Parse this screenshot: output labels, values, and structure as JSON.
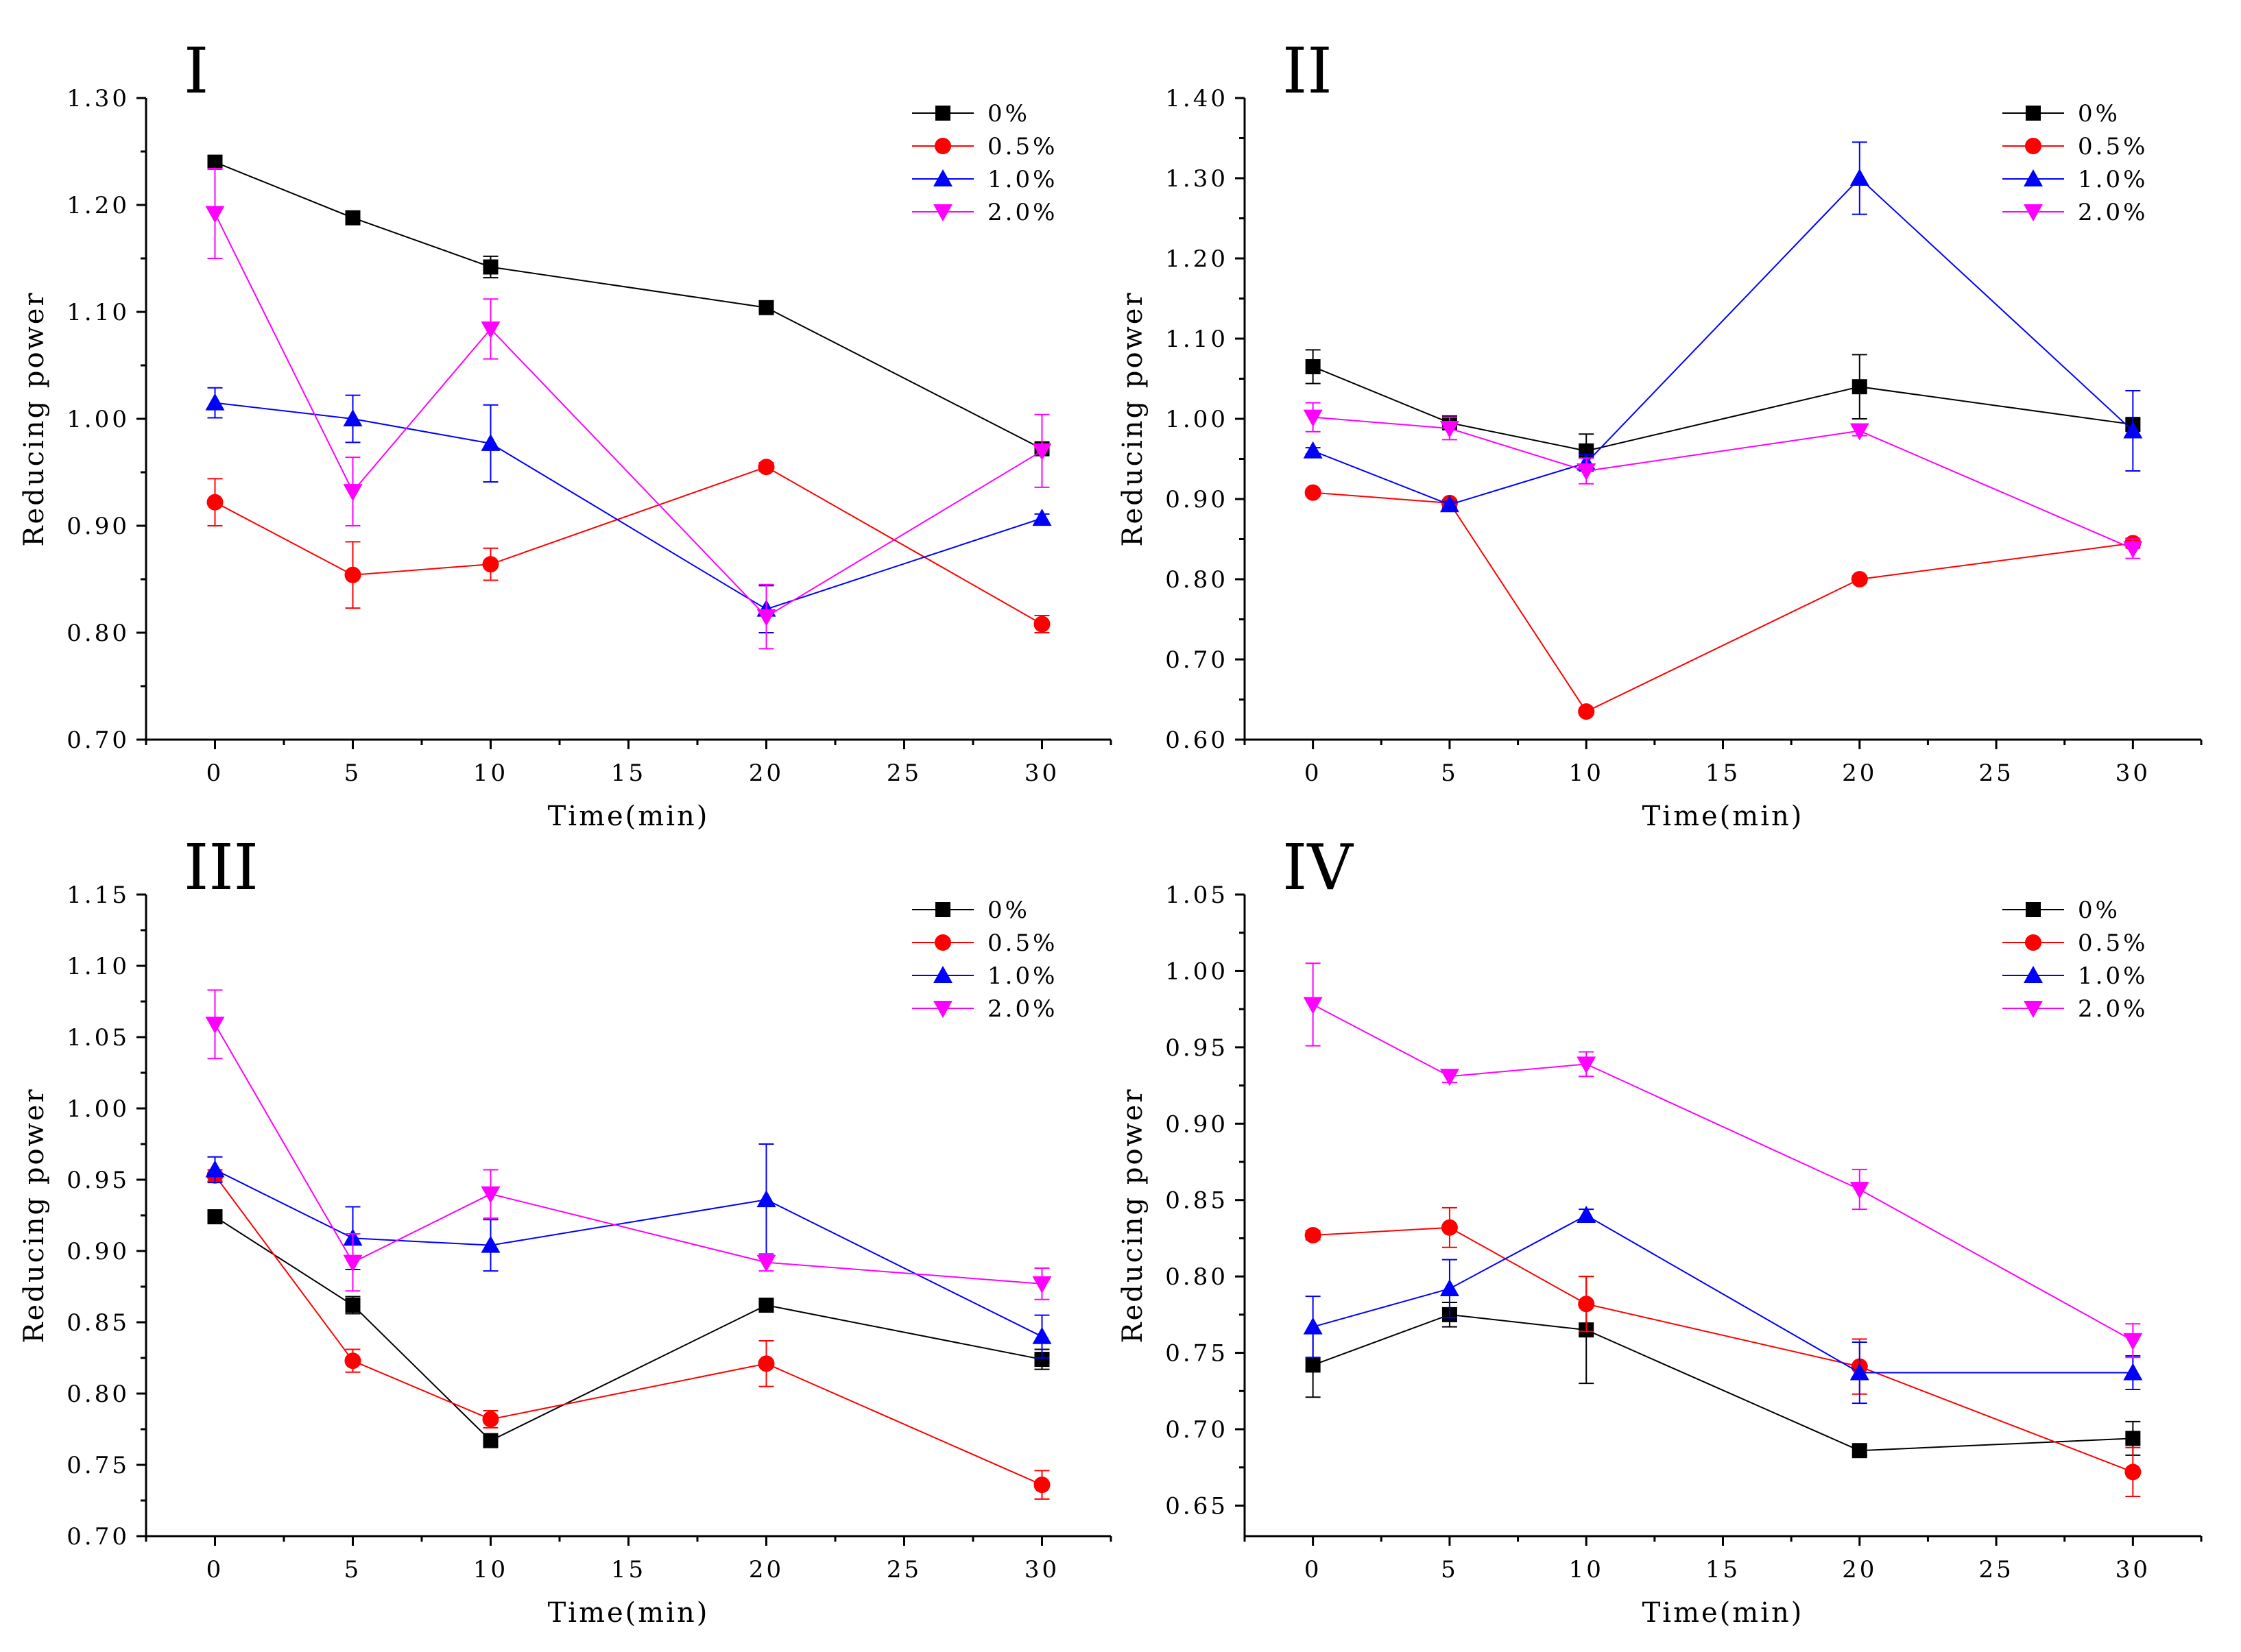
{
  "colors": {
    "0%": "#000000",
    "0.5%": "#ff0000",
    "1.0%": "#0000ff",
    "2.0%": "#ff00ff"
  },
  "chart_data": [
    {
      "type": "line",
      "panel_label": "I",
      "xlabel": "Time(min)",
      "ylabel": "Reducing power",
      "xlim": [
        -2.5,
        32.5
      ],
      "xticks": [
        0,
        5,
        10,
        15,
        20,
        25,
        30
      ],
      "xtick_labels": [
        "0",
        "5",
        "10",
        "15",
        "20",
        "25",
        "30"
      ],
      "ylim": [
        0.7,
        1.3
      ],
      "yticks": [
        0.7,
        0.8,
        0.9,
        1.0,
        1.1,
        1.2,
        1.3
      ],
      "ytick_labels": [
        "0.70",
        "0.80",
        "0.90",
        "1.00",
        "1.10",
        "1.20",
        "1.30"
      ],
      "x": [
        0,
        5,
        10,
        20,
        30
      ],
      "legend_position": "top-right",
      "series": [
        {
          "name": "0%",
          "marker": "square",
          "values": [
            1.24,
            1.188,
            1.142,
            1.104,
            0.972
          ],
          "errors": [
            0.004,
            0.004,
            0.01,
            0.004,
            0.004
          ]
        },
        {
          "name": "0.5%",
          "marker": "circle",
          "values": [
            0.922,
            0.854,
            0.864,
            0.955,
            0.808
          ],
          "errors": [
            0.022,
            0.031,
            0.015,
            0.004,
            0.008
          ]
        },
        {
          "name": "1.0%",
          "marker": "triangle-up",
          "values": [
            1.015,
            1.0,
            0.977,
            0.822,
            0.907
          ],
          "errors": [
            0.014,
            0.022,
            0.036,
            0.022,
            0.004
          ]
        },
        {
          "name": "2.0%",
          "marker": "triangle-down",
          "values": [
            1.192,
            0.932,
            1.084,
            0.815,
            0.97
          ],
          "errors": [
            0.042,
            0.032,
            0.028,
            0.03,
            0.034
          ]
        }
      ]
    },
    {
      "type": "line",
      "panel_label": "II",
      "xlabel": "Time(min)",
      "ylabel": "Reducing power",
      "xlim": [
        -2.5,
        32.5
      ],
      "xticks": [
        0,
        5,
        10,
        15,
        20,
        25,
        30
      ],
      "xtick_labels": [
        "0",
        "5",
        "10",
        "15",
        "20",
        "25",
        "30"
      ],
      "ylim": [
        0.6,
        1.4
      ],
      "yticks": [
        0.6,
        0.7,
        0.8,
        0.9,
        1.0,
        1.1,
        1.2,
        1.3,
        1.4
      ],
      "ytick_labels": [
        "0.60",
        "0.70",
        "0.80",
        "0.90",
        "1.00",
        "1.10",
        "1.20",
        "1.30",
        "1.40"
      ],
      "x": [
        0,
        5,
        10,
        20,
        30
      ],
      "legend_position": "top-right",
      "series": [
        {
          "name": "0%",
          "marker": "square",
          "values": [
            1.065,
            0.995,
            0.96,
            1.04,
            0.993
          ],
          "errors": [
            0.021,
            0.006,
            0.021,
            0.04,
            0.006
          ]
        },
        {
          "name": "0.5%",
          "marker": "circle",
          "values": [
            0.908,
            0.895,
            0.635,
            0.8,
            0.845
          ],
          "errors": [
            0.004,
            0.004,
            0.004,
            0.004,
            0.006
          ]
        },
        {
          "name": "1.0%",
          "marker": "triangle-up",
          "values": [
            0.96,
            0.893,
            0.945,
            1.3,
            0.985
          ],
          "errors": [
            0.004,
            0.004,
            0.01,
            0.045,
            0.05
          ]
        },
        {
          "name": "2.0%",
          "marker": "triangle-down",
          "values": [
            1.002,
            0.988,
            0.935,
            0.985,
            0.838
          ],
          "errors": [
            0.018,
            0.014,
            0.016,
            0.006,
            0.012
          ]
        }
      ]
    },
    {
      "type": "line",
      "panel_label": "III",
      "xlabel": "Time(min)",
      "ylabel": "Reducing power",
      "xlim": [
        -2.5,
        32.5
      ],
      "xticks": [
        0,
        5,
        10,
        15,
        20,
        25,
        30
      ],
      "xtick_labels": [
        "0",
        "5",
        "10",
        "15",
        "20",
        "25",
        "30"
      ],
      "ylim": [
        0.7,
        1.15
      ],
      "yticks": [
        0.7,
        0.75,
        0.8,
        0.85,
        0.9,
        0.95,
        1.0,
        1.05,
        1.1,
        1.15
      ],
      "ytick_labels": [
        "0.70",
        "0.75",
        "0.80",
        "0.85",
        "0.90",
        "0.95",
        "1.00",
        "1.05",
        "1.10",
        "1.15"
      ],
      "x": [
        0,
        5,
        10,
        20,
        30
      ],
      "legend_position": "top-right",
      "series": [
        {
          "name": "0%",
          "marker": "square",
          "values": [
            0.924,
            0.862,
            0.767,
            0.862,
            0.824
          ],
          "errors": [
            0.003,
            0.006,
            0.003,
            0.003,
            0.007
          ]
        },
        {
          "name": "0.5%",
          "marker": "circle",
          "values": [
            0.953,
            0.823,
            0.782,
            0.821,
            0.736
          ],
          "errors": [
            0.004,
            0.008,
            0.006,
            0.016,
            0.01
          ]
        },
        {
          "name": "1.0%",
          "marker": "triangle-up",
          "values": [
            0.957,
            0.909,
            0.904,
            0.936,
            0.84
          ],
          "errors": [
            0.009,
            0.022,
            0.018,
            0.039,
            0.015
          ]
        },
        {
          "name": "2.0%",
          "marker": "triangle-down",
          "values": [
            1.059,
            0.892,
            0.94,
            0.892,
            0.877
          ],
          "errors": [
            0.024,
            0.02,
            0.017,
            0.006,
            0.011
          ]
        }
      ]
    },
    {
      "type": "line",
      "panel_label": "IV",
      "xlabel": "Time(min)",
      "ylabel": "Reducing power",
      "xlim": [
        -2.5,
        32.5
      ],
      "xticks": [
        0,
        5,
        10,
        15,
        20,
        25,
        30
      ],
      "xtick_labels": [
        "0",
        "5",
        "10",
        "15",
        "20",
        "25",
        "30"
      ],
      "ylim": [
        0.63,
        1.05
      ],
      "yticks": [
        0.65,
        0.7,
        0.75,
        0.8,
        0.85,
        0.9,
        0.95,
        1.0,
        1.05
      ],
      "ytick_labels": [
        "0.65",
        "0.70",
        "0.75",
        "0.80",
        "0.85",
        "0.90",
        "0.95",
        "1.00",
        "1.05"
      ],
      "x": [
        0,
        5,
        10,
        20,
        30
      ],
      "legend_position": "top-right",
      "series": [
        {
          "name": "0%",
          "marker": "square",
          "values": [
            0.742,
            0.775,
            0.765,
            0.686,
            0.694
          ],
          "errors": [
            0.021,
            0.008,
            0.035,
            0.003,
            0.011
          ]
        },
        {
          "name": "0.5%",
          "marker": "circle",
          "values": [
            0.827,
            0.832,
            0.782,
            0.741,
            0.672
          ],
          "errors": [
            0.003,
            0.013,
            0.018,
            0.018,
            0.016
          ]
        },
        {
          "name": "1.0%",
          "marker": "triangle-up",
          "values": [
            0.767,
            0.792,
            0.84,
            0.737,
            0.737
          ],
          "errors": [
            0.02,
            0.019,
            0.004,
            0.02,
            0.011
          ]
        },
        {
          "name": "2.0%",
          "marker": "triangle-down",
          "values": [
            0.978,
            0.931,
            0.939,
            0.857,
            0.758
          ],
          "errors": [
            0.027,
            0.004,
            0.008,
            0.013,
            0.011
          ]
        }
      ]
    }
  ]
}
